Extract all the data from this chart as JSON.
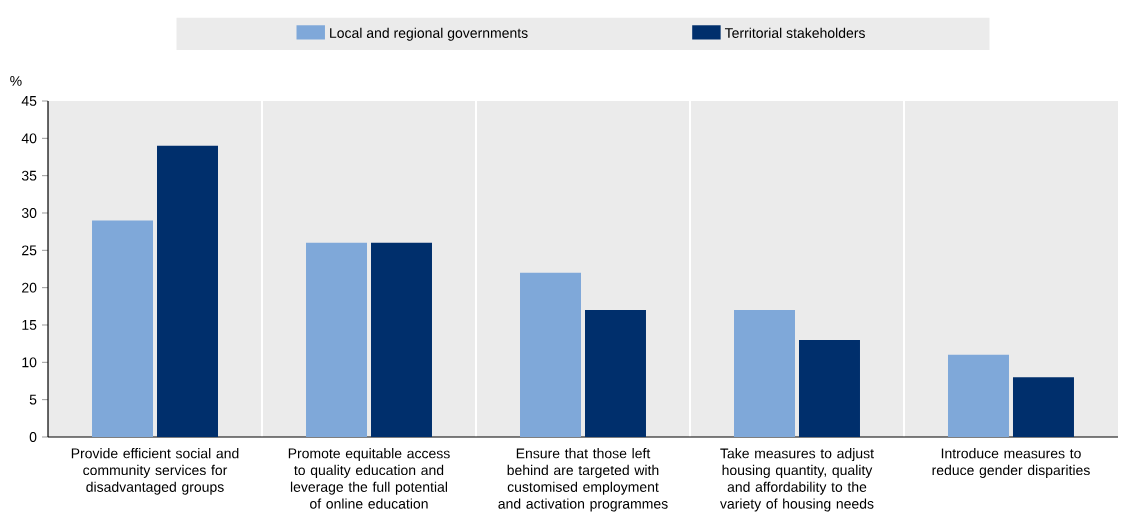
{
  "chart_data": {
    "type": "bar",
    "ylabel": "%",
    "categories": [
      "Provide efficient social and community services for disadvantaged groups",
      "Promote equitable access to quality education and leverage the full potential of online education",
      "Ensure that those left behind are targeted with customised employment and activation programmes",
      "Take measures to adjust housing quantity, quality and affordability to the variety of housing needs",
      "Introduce measures to reduce gender disparities"
    ],
    "series": [
      {
        "name": "Local and regional governments",
        "color": "#7fa8d9",
        "values": [
          29,
          26,
          22,
          17,
          11
        ]
      },
      {
        "name": "Territorial stakeholders",
        "color": "#002f6c",
        "values": [
          39,
          26,
          17,
          13,
          8
        ]
      }
    ],
    "ylim": [
      0,
      45
    ],
    "yticks": [
      0,
      5,
      10,
      15,
      20,
      25,
      30,
      35,
      40,
      45
    ],
    "legend": "top"
  }
}
